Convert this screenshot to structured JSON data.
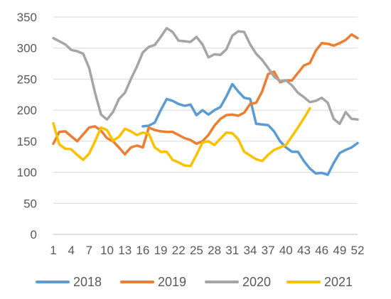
{
  "chart_data": {
    "type": "line",
    "title": "",
    "xlabel": "",
    "ylabel": "",
    "ylim": [
      0,
      350
    ],
    "yticks": [
      0,
      50,
      100,
      150,
      200,
      250,
      300,
      350
    ],
    "x_tick_labels": [
      "1",
      "4",
      "7",
      "10",
      "13",
      "16",
      "19",
      "22",
      "25",
      "28",
      "31",
      "34",
      "37",
      "40",
      "43",
      "46",
      "49",
      "52"
    ],
    "x_tick_weeks": [
      1,
      4,
      7,
      10,
      13,
      16,
      19,
      22,
      25,
      28,
      31,
      34,
      37,
      40,
      43,
      46,
      49,
      52
    ],
    "xlim": [
      1,
      52
    ],
    "grid": "horizontal",
    "legend_position": "bottom",
    "series": [
      {
        "name": "2018",
        "color": "#5B9BD5",
        "x": [
          16,
          17,
          18,
          19,
          20,
          21,
          22,
          23,
          24,
          25,
          26,
          27,
          28,
          29,
          30,
          31,
          32,
          33,
          34,
          35,
          36,
          37,
          38,
          39,
          40,
          41,
          42,
          43,
          44,
          45,
          46,
          47,
          48,
          49,
          50,
          51,
          52
        ],
        "values": [
          174,
          175,
          180,
          200,
          218,
          215,
          210,
          207,
          209,
          192,
          200,
          193,
          200,
          205,
          222,
          242,
          230,
          220,
          218,
          178,
          177,
          176,
          166,
          150,
          140,
          133,
          133,
          118,
          106,
          98,
          99,
          96,
          115,
          131,
          136,
          140,
          147
        ]
      },
      {
        "name": "2019",
        "color": "#ED7D31",
        "x": [
          1,
          2,
          3,
          4,
          5,
          6,
          7,
          8,
          9,
          10,
          11,
          12,
          13,
          14,
          15,
          16,
          17,
          18,
          19,
          20,
          21,
          22,
          23,
          24,
          25,
          26,
          27,
          28,
          29,
          30,
          31,
          32,
          33,
          34,
          35,
          36,
          37,
          38,
          39,
          40,
          41,
          42,
          43,
          44,
          45,
          46,
          47,
          48,
          49,
          50,
          51,
          52
        ],
        "values": [
          146,
          165,
          166,
          158,
          150,
          161,
          172,
          174,
          167,
          155,
          150,
          140,
          129,
          140,
          143,
          140,
          172,
          168,
          166,
          165,
          165,
          160,
          155,
          152,
          146,
          150,
          160,
          175,
          186,
          192,
          193,
          191,
          196,
          210,
          212,
          230,
          258,
          262,
          245,
          248,
          248,
          260,
          272,
          276,
          296,
          308,
          307,
          304,
          308,
          313,
          322,
          316
        ]
      },
      {
        "name": "2020",
        "color": "#A5A5A5",
        "x": [
          1,
          2,
          3,
          4,
          5,
          6,
          7,
          8,
          9,
          10,
          11,
          12,
          13,
          14,
          15,
          16,
          17,
          18,
          19,
          20,
          21,
          22,
          23,
          24,
          25,
          26,
          27,
          28,
          29,
          30,
          31,
          32,
          33,
          34,
          35,
          36,
          37,
          38,
          39,
          40,
          41,
          42,
          43,
          44,
          45,
          46,
          47,
          48,
          49,
          50,
          51,
          52
        ],
        "values": [
          316,
          311,
          306,
          297,
          295,
          291,
          268,
          228,
          193,
          185,
          197,
          218,
          228,
          250,
          270,
          293,
          302,
          305,
          318,
          332,
          326,
          312,
          311,
          310,
          318,
          306,
          285,
          290,
          289,
          298,
          320,
          327,
          326,
          306,
          291,
          281,
          268,
          254,
          247,
          248,
          240,
          228,
          221,
          213,
          215,
          220,
          212,
          186,
          178,
          197,
          186,
          185
        ]
      },
      {
        "name": "2021",
        "color": "#FFC000",
        "x": [
          1,
          2,
          3,
          4,
          5,
          6,
          7,
          8,
          9,
          10,
          11,
          12,
          13,
          14,
          15,
          16,
          17,
          18,
          19,
          20,
          21,
          22,
          23,
          24,
          25,
          26,
          27,
          28,
          29,
          30,
          31,
          32,
          33,
          34,
          35,
          36,
          37,
          38,
          39,
          40,
          41,
          42,
          43,
          44
        ],
        "values": [
          179,
          145,
          138,
          137,
          128,
          120,
          130,
          150,
          172,
          168,
          151,
          157,
          170,
          166,
          160,
          164,
          162,
          140,
          133,
          133,
          120,
          116,
          111,
          110,
          128,
          148,
          150,
          144,
          154,
          164,
          163,
          153,
          133,
          127,
          121,
          118,
          128,
          136,
          140,
          144,
          158,
          172,
          187,
          203
        ]
      }
    ]
  }
}
